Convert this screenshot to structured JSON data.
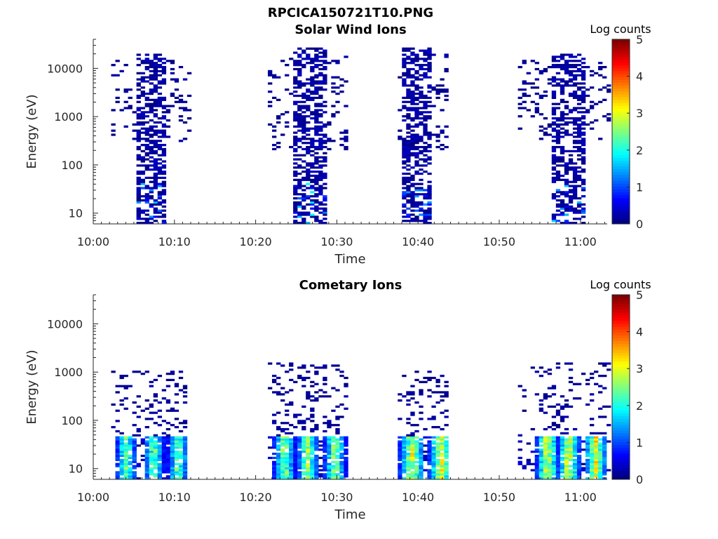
{
  "figure_title": "RPCICA150721T10.PNG",
  "chart_data": [
    {
      "type": "heatmap",
      "title": "Solar Wind Ions",
      "xlabel": "Time",
      "ylabel": "Energy (eV)",
      "x_ticks": [
        "10:00",
        "10:10",
        "10:20",
        "10:30",
        "10:40",
        "10:50",
        "11:00"
      ],
      "x_tick_minutes": [
        0,
        10,
        20,
        30,
        40,
        50,
        60
      ],
      "xlim_minutes": [
        0,
        63.3
      ],
      "x_reference": "10:00",
      "y_scale": "log",
      "y_ticks": [
        "10",
        "100",
        "1000",
        "10000"
      ],
      "y_tick_values": [
        10,
        100,
        1000,
        10000
      ],
      "ylim": [
        6,
        40000
      ],
      "colorbar_label": "Log counts",
      "colorbar_ticks": [
        "0",
        "1",
        "2",
        "3",
        "4",
        "5"
      ],
      "colorbar_range": [
        0,
        5
      ],
      "colormap": "jet",
      "bursts": [
        {
          "t_start": 2.2,
          "t_end": 11.7,
          "core_start": 5.2,
          "core_end": 8.6,
          "e_low": 6,
          "e_high": 20000,
          "scatter_low": 300,
          "scatter_high": 15000,
          "peak": 1.6
        },
        {
          "t_start": 21.5,
          "t_end": 31.0,
          "core_start": 24.2,
          "core_end": 28.6,
          "e_low": 6,
          "e_high": 25000,
          "scatter_low": 200,
          "scatter_high": 20000,
          "peak": 1.9
        },
        {
          "t_start": 37.5,
          "t_end": 43.7,
          "core_start": 37.6,
          "core_end": 41.2,
          "e_low": 6,
          "e_high": 25000,
          "scatter_low": 200,
          "scatter_high": 20000,
          "peak": 1.5
        },
        {
          "t_start": 52.3,
          "t_end": 63.3,
          "core_start": 56.3,
          "core_end": 60.3,
          "e_low": 6,
          "e_high": 20000,
          "scatter_low": 300,
          "scatter_high": 15000,
          "peak": 2.0
        }
      ]
    },
    {
      "type": "heatmap",
      "title": "Cometary Ions",
      "xlabel": "Time",
      "ylabel": "Energy (eV)",
      "x_ticks": [
        "10:00",
        "10:10",
        "10:20",
        "10:30",
        "10:40",
        "10:50",
        "11:00"
      ],
      "x_tick_minutes": [
        0,
        10,
        20,
        30,
        40,
        50,
        60
      ],
      "xlim_minutes": [
        0,
        63.3
      ],
      "x_reference": "10:00",
      "y_scale": "log",
      "y_ticks": [
        "10",
        "100",
        "1000",
        "10000"
      ],
      "y_tick_values": [
        10,
        100,
        1000,
        10000
      ],
      "ylim": [
        6,
        40000
      ],
      "colorbar_label": "Log counts",
      "colorbar_ticks": [
        "0",
        "1",
        "2",
        "3",
        "4",
        "5"
      ],
      "colorbar_range": [
        0,
        5
      ],
      "colormap": "jet",
      "bursts": [
        {
          "t_start": 2.2,
          "t_end": 11.5,
          "cores": [
            3.8,
            7.2,
            10.2
          ],
          "core_width": 1.3,
          "e_low": 6,
          "e_high": 1000,
          "peak": 3.0
        },
        {
          "t_start": 21.5,
          "t_end": 31.0,
          "cores": [
            23.3,
            26.2,
            29.5
          ],
          "core_width": 1.4,
          "e_low": 6,
          "e_high": 1500,
          "peak": 3.2
        },
        {
          "t_start": 37.5,
          "t_end": 43.7,
          "cores": [
            39.0,
            42.6
          ],
          "core_width": 1.6,
          "e_low": 6,
          "e_high": 1000,
          "peak": 3.6
        },
        {
          "t_start": 52.3,
          "t_end": 63.3,
          "cores": [
            55.7,
            58.3,
            61.6
          ],
          "core_width": 1.4,
          "e_low": 6,
          "e_high": 1500,
          "peak": 3.8
        }
      ]
    }
  ]
}
